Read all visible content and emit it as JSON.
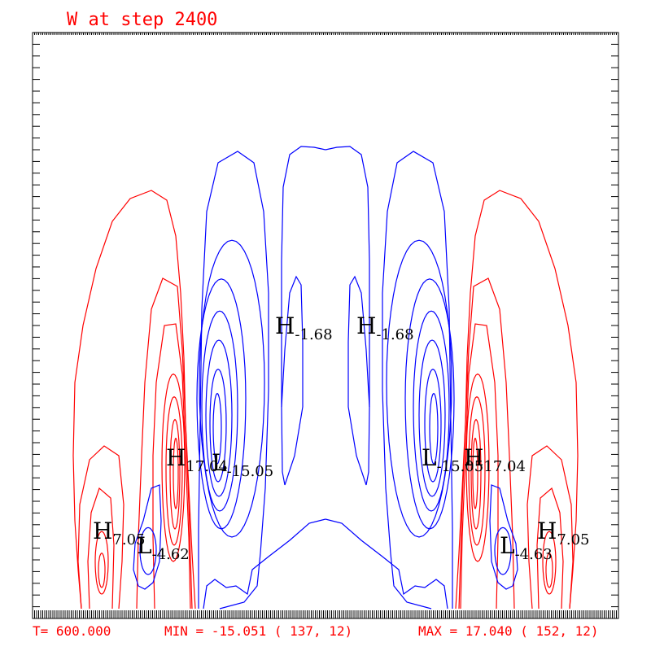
{
  "chart_data": {
    "type": "contour",
    "title": "W at step 2400",
    "footer": {
      "time": "T= 600.000",
      "min": "MIN = -15.051 ( 137, 12)",
      "max": "MAX =  17.040 ( 152, 12)"
    },
    "min_value": -15.051,
    "max_value": 17.04,
    "positive_contour_color": "#ff0000",
    "negative_contour_color": "#0000ff",
    "frame_color": "#000000",
    "extrema_labels": [
      {
        "kind": "H",
        "value": "-1.68"
      },
      {
        "kind": "H",
        "value": "-1.68"
      },
      {
        "kind": "H",
        "value": "17.04"
      },
      {
        "kind": "L",
        "value": "-15.05"
      },
      {
        "kind": "L",
        "value": "-15.05"
      },
      {
        "kind": "H",
        "value": "17.04"
      },
      {
        "kind": "H",
        "value": "7.05"
      },
      {
        "kind": "L",
        "value": "-4.62"
      },
      {
        "kind": "L",
        "value": "-4.63"
      },
      {
        "kind": "H",
        "value": "7.05"
      }
    ]
  }
}
